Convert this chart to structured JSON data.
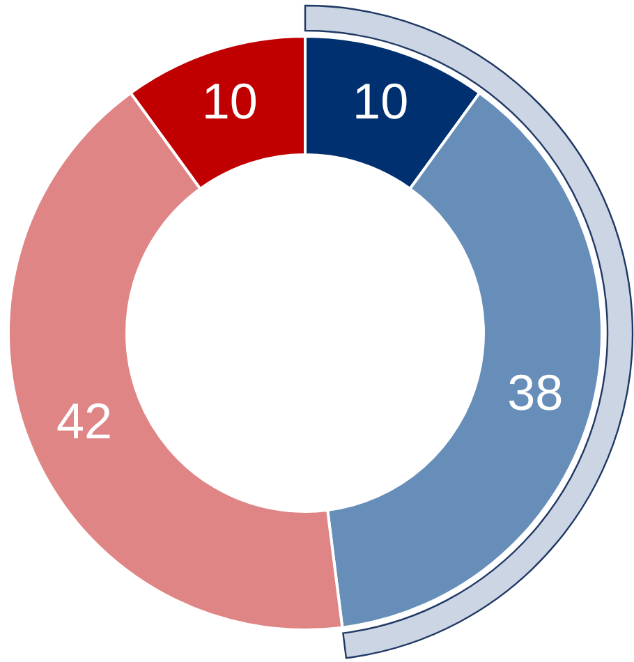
{
  "chart_data": {
    "type": "donut",
    "categories": [
      null,
      null,
      null,
      null
    ],
    "values": [
      10,
      38,
      42,
      10
    ],
    "colors": [
      "#003070",
      "#668eb8",
      "#e08585",
      "#c00000"
    ],
    "data_labels": true
  }
}
